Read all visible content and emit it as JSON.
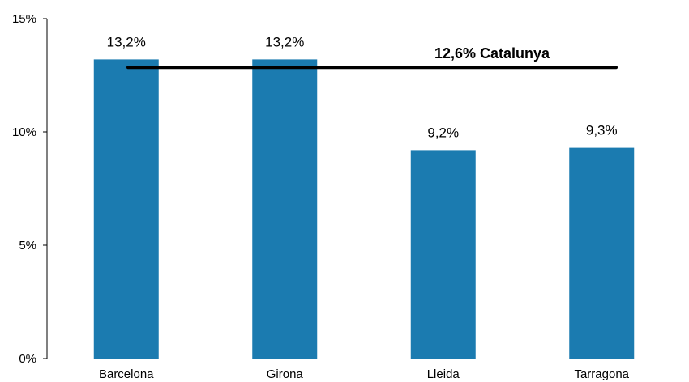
{
  "chart_data": {
    "type": "bar",
    "categories": [
      "Barcelona",
      "Girona",
      "Lleida",
      "Tarragona"
    ],
    "values": [
      13.2,
      13.2,
      9.2,
      9.3
    ],
    "data_labels": [
      "13,2%",
      "13,2%",
      "9,2%",
      "9,3%"
    ],
    "ylim": [
      0,
      15
    ],
    "y_ticks": [
      0,
      5,
      10,
      15
    ],
    "y_tick_labels": [
      "0%",
      "5%",
      "10%",
      "15%"
    ],
    "bar_color": "#1b7bb0",
    "grid": false,
    "reference_line": {
      "value": 12.6,
      "label": "12,6% Catalunya",
      "color": "#000000"
    }
  }
}
